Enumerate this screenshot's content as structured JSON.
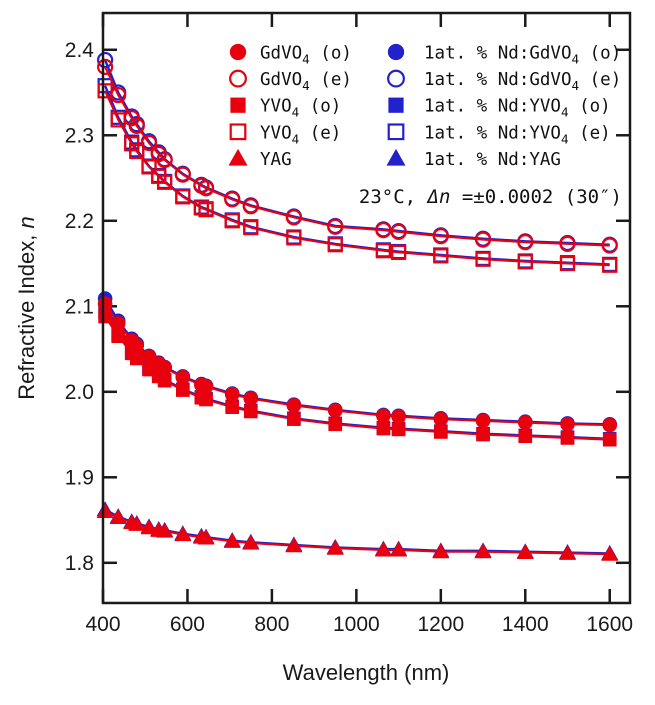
{
  "colors": {
    "red": "#e8000d",
    "blue": "#2222cc",
    "ink": "#1a1a1a"
  },
  "annotation": {
    "text": "23°C, Δn =±0.0002 (30″)",
    "parts": [
      [
        "23°C,  ",
        0
      ],
      [
        "Δn",
        2
      ],
      [
        " =±0.0002 (30″)",
        0
      ]
    ]
  },
  "legend": {
    "columns": [
      {
        "items": [
          {
            "marker": "circle-filled",
            "color_key": "red",
            "text": "GdVO4 (o)",
            "parts": [
              [
                "GdVO",
                0
              ],
              [
                "4",
                1
              ],
              [
                " (o)",
                0
              ]
            ]
          },
          {
            "marker": "circle-open",
            "color_key": "red",
            "text": "GdVO4 (e)",
            "parts": [
              [
                "GdVO",
                0
              ],
              [
                "4",
                1
              ],
              [
                " (e)",
                0
              ]
            ]
          },
          {
            "marker": "square-filled",
            "color_key": "red",
            "text": "YVO4 (o)",
            "parts": [
              [
                "YVO",
                0
              ],
              [
                "4",
                1
              ],
              [
                " (o)",
                0
              ]
            ]
          },
          {
            "marker": "square-open",
            "color_key": "red",
            "text": "YVO4 (e)",
            "parts": [
              [
                "YVO",
                0
              ],
              [
                "4",
                1
              ],
              [
                " (e)",
                0
              ]
            ]
          },
          {
            "marker": "triangle-filled",
            "color_key": "red",
            "text": "YAG",
            "parts": [
              [
                "YAG",
                0
              ]
            ]
          }
        ]
      },
      {
        "items": [
          {
            "marker": "circle-filled",
            "color_key": "blue",
            "text": "1at. % Nd:GdVO4 (o)",
            "parts": [
              [
                "1at. % Nd:GdVO",
                0
              ],
              [
                "4",
                1
              ],
              [
                " (o)",
                0
              ]
            ]
          },
          {
            "marker": "circle-open",
            "color_key": "blue",
            "text": "1at. % Nd:GdVO4 (e)",
            "parts": [
              [
                "1at. % Nd:GdVO",
                0
              ],
              [
                "4",
                1
              ],
              [
                " (e)",
                0
              ]
            ]
          },
          {
            "marker": "square-filled",
            "color_key": "blue",
            "text": "1at. % Nd:YVO4 (o)",
            "parts": [
              [
                "1at. % Nd:YVO",
                0
              ],
              [
                "4",
                1
              ],
              [
                " (o)",
                0
              ]
            ]
          },
          {
            "marker": "square-open",
            "color_key": "blue",
            "text": "1at. % Nd:YVO4 (e)",
            "parts": [
              [
                "1at. % Nd:YVO",
                0
              ],
              [
                "4",
                1
              ],
              [
                " (e)",
                0
              ]
            ]
          },
          {
            "marker": "triangle-filled",
            "color_key": "blue",
            "text": "1at. % Nd:YAG",
            "parts": [
              [
                "1at. % Nd:YAG",
                0
              ]
            ]
          }
        ]
      }
    ]
  },
  "chart_data": {
    "type": "scatter",
    "title": "",
    "xlabel": "Wavelength (nm)",
    "ylabel": "Refractive Index, n",
    "ylabel_main": "Refractive Index, ",
    "ylabel_symbol": "n",
    "annotation": "23°C, Δn =±0.0002 (30″)",
    "xlim": [
      400,
      1648
    ],
    "ylim": [
      1.753,
      2.443
    ],
    "x_ticks": [
      400,
      600,
      800,
      1000,
      1200,
      1400,
      1600
    ],
    "y_ticks": [
      "1.8",
      "1.9",
      "2.0",
      "2.1",
      "2.2",
      "2.3",
      "2.4"
    ],
    "grid": false,
    "legend_position": "top-inside",
    "x_nm": [
      405,
      436,
      468,
      480,
      509,
      532,
      546,
      589,
      633,
      644,
      706,
      750,
      852,
      950,
      1064,
      1100,
      1200,
      1300,
      1400,
      1500,
      1600
    ],
    "series": [
      {
        "id": "nd-gdvo4-e",
        "name": "1at.% Nd:GdVO4 (e)",
        "color_key": "blue",
        "marker": "circle-open",
        "values": [
          2.388,
          2.35,
          2.322,
          2.313,
          2.293,
          2.28,
          2.272,
          2.255,
          2.242,
          2.239,
          2.226,
          2.218,
          2.205,
          2.194,
          2.19,
          2.188,
          2.183,
          2.179,
          2.176,
          2.174,
          2.172
        ]
      },
      {
        "id": "nd-yvo4-e",
        "name": "1at.% Nd:YVO4 (e)",
        "color_key": "blue",
        "marker": "square-open",
        "values": [
          2.358,
          2.321,
          2.292,
          2.283,
          2.264,
          2.253,
          2.246,
          2.229,
          2.216,
          2.214,
          2.201,
          2.193,
          2.181,
          2.173,
          2.166,
          2.164,
          2.16,
          2.156,
          2.153,
          2.151,
          2.149
        ]
      },
      {
        "id": "nd-gdvo4-o",
        "name": "1at.% Nd:GdVO4 (o)",
        "color_key": "blue",
        "marker": "circle-filled",
        "values": [
          2.109,
          2.083,
          2.062,
          2.056,
          2.042,
          2.034,
          2.029,
          2.018,
          2.009,
          2.007,
          1.998,
          1.993,
          1.985,
          1.979,
          1.973,
          1.972,
          1.969,
          1.967,
          1.965,
          1.963,
          1.962
        ]
      },
      {
        "id": "nd-yvo4-o",
        "name": "1at.% Nd:YVO4 (o)",
        "color_key": "blue",
        "marker": "square-filled",
        "values": [
          2.093,
          2.067,
          2.047,
          2.04,
          2.027,
          2.019,
          2.014,
          2.003,
          1.994,
          1.992,
          1.983,
          1.978,
          1.969,
          1.963,
          1.958,
          1.957,
          1.954,
          1.951,
          1.949,
          1.947,
          1.945
        ]
      },
      {
        "id": "nd-yag",
        "name": "1at.% Nd:YAG",
        "color_key": "blue",
        "marker": "triangle-filled",
        "values": [
          1.862,
          1.854,
          1.848,
          1.846,
          1.842,
          1.839,
          1.838,
          1.834,
          1.831,
          1.83,
          1.826,
          1.824,
          1.821,
          1.818,
          1.816,
          1.816,
          1.814,
          1.814,
          1.813,
          1.812,
          1.811
        ]
      },
      {
        "id": "gdvo4-e",
        "name": "GdVO4 (e)",
        "color_key": "red",
        "marker": "circle-open",
        "values": [
          2.38,
          2.347,
          2.32,
          2.311,
          2.291,
          2.278,
          2.271,
          2.254,
          2.241,
          2.238,
          2.225,
          2.217,
          2.204,
          2.193,
          2.189,
          2.187,
          2.182,
          2.178,
          2.175,
          2.173,
          2.171
        ]
      },
      {
        "id": "yvo4-e",
        "name": "YVO4 (e)",
        "color_key": "red",
        "marker": "square-open",
        "values": [
          2.352,
          2.318,
          2.29,
          2.281,
          2.263,
          2.252,
          2.245,
          2.228,
          2.215,
          2.213,
          2.2,
          2.192,
          2.18,
          2.172,
          2.165,
          2.163,
          2.159,
          2.155,
          2.152,
          2.15,
          2.148
        ]
      },
      {
        "id": "gdvo4-o",
        "name": "GdVO4 (o)",
        "color_key": "red",
        "marker": "circle-filled",
        "values": [
          2.103,
          2.08,
          2.06,
          2.054,
          2.041,
          2.033,
          2.028,
          2.017,
          2.008,
          2.006,
          1.997,
          1.992,
          1.984,
          1.978,
          1.972,
          1.971,
          1.968,
          1.966,
          1.964,
          1.962,
          1.961
        ]
      },
      {
        "id": "yvo4-o",
        "name": "YVO4 (o)",
        "color_key": "red",
        "marker": "square-filled",
        "values": [
          2.088,
          2.065,
          2.045,
          2.039,
          2.026,
          2.018,
          2.013,
          2.002,
          1.993,
          1.991,
          1.982,
          1.977,
          1.968,
          1.962,
          1.957,
          1.956,
          1.953,
          1.95,
          1.948,
          1.946,
          1.944
        ]
      },
      {
        "id": "yag",
        "name": "YAG",
        "color_key": "red",
        "marker": "triangle-filled",
        "values": [
          1.86,
          1.853,
          1.847,
          1.845,
          1.841,
          1.838,
          1.837,
          1.833,
          1.83,
          1.829,
          1.825,
          1.823,
          1.82,
          1.817,
          1.815,
          1.815,
          1.813,
          1.813,
          1.812,
          1.811,
          1.81
        ]
      }
    ]
  }
}
